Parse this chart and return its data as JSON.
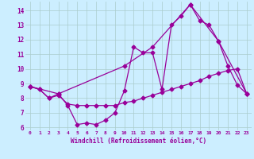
{
  "background_color": "#cceeff",
  "grid_color": "#aacccc",
  "line_color": "#990099",
  "marker": "D",
  "markersize": 2.5,
  "linewidth": 0.9,
  "xlabel": "Windchill (Refroidissement éolien,°C)",
  "xlim": [
    -0.5,
    23.5
  ],
  "ylim": [
    5.8,
    14.6
  ],
  "yticks": [
    6,
    7,
    8,
    9,
    10,
    11,
    12,
    13,
    14
  ],
  "xticks": [
    0,
    1,
    2,
    3,
    4,
    5,
    6,
    7,
    8,
    9,
    10,
    11,
    12,
    13,
    14,
    15,
    16,
    17,
    18,
    19,
    20,
    21,
    22,
    23
  ],
  "series1": {
    "x": [
      0,
      1,
      2,
      3,
      4,
      5,
      6,
      7,
      8,
      9,
      10,
      11,
      12,
      13,
      14,
      15,
      16,
      17,
      18,
      19,
      20,
      21,
      22,
      23
    ],
    "y": [
      8.8,
      8.6,
      8.0,
      8.3,
      7.5,
      6.2,
      6.3,
      6.2,
      6.5,
      7.0,
      8.5,
      11.5,
      11.1,
      11.1,
      8.6,
      13.0,
      13.6,
      14.4,
      13.3,
      13.0,
      11.9,
      10.2,
      8.9,
      8.3
    ]
  },
  "series2": {
    "x": [
      0,
      1,
      2,
      3,
      4,
      5,
      6,
      7,
      8,
      9,
      10,
      11,
      12,
      13,
      14,
      15,
      16,
      17,
      18,
      19,
      20,
      21,
      22,
      23
    ],
    "y": [
      8.8,
      8.6,
      8.0,
      8.2,
      7.6,
      7.5,
      7.5,
      7.5,
      7.5,
      7.5,
      7.7,
      7.8,
      8.0,
      8.2,
      8.4,
      8.6,
      8.8,
      9.0,
      9.2,
      9.5,
      9.7,
      9.9,
      10.0,
      8.3
    ]
  },
  "series3": {
    "x": [
      0,
      3,
      10,
      13,
      17,
      20,
      23
    ],
    "y": [
      8.8,
      8.3,
      10.2,
      11.5,
      14.4,
      11.9,
      8.3
    ]
  }
}
